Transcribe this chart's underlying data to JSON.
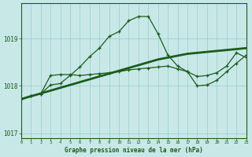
{
  "title": "Graphe pression niveau de la mer (hPa)",
  "bg_color": "#c8e8e8",
  "line_color": "#1a5c1a",
  "grid_color": "#99cccc",
  "xlim": [
    0,
    23
  ],
  "ylim": [
    1016.9,
    1019.75
  ],
  "yticks": [
    1017,
    1018,
    1019
  ],
  "xticks": [
    0,
    1,
    2,
    3,
    4,
    5,
    6,
    7,
    8,
    9,
    10,
    11,
    12,
    13,
    14,
    15,
    16,
    17,
    18,
    19,
    20,
    21,
    22,
    23
  ],
  "series_trend": [
    1017.72,
    1017.78,
    1017.84,
    1017.9,
    1017.96,
    1018.02,
    1018.08,
    1018.14,
    1018.2,
    1018.26,
    1018.32,
    1018.38,
    1018.44,
    1018.5,
    1018.56,
    1018.6,
    1018.64,
    1018.68,
    1018.7,
    1018.72,
    1018.74,
    1018.76,
    1018.78,
    1018.8
  ],
  "series_wavy": [
    1017.72,
    1017.79,
    1017.83,
    1018.02,
    1018.05,
    1018.22,
    1018.4,
    1018.62,
    1018.8,
    1019.05,
    1019.15,
    1019.38,
    1019.47,
    1019.47,
    1019.1,
    1018.65,
    1018.42,
    1018.3,
    1018.0,
    1018.02,
    1018.12,
    1018.3,
    1018.48,
    1018.65
  ],
  "series_flat": [
    1017.72,
    1017.79,
    1017.83,
    1018.22,
    1018.24,
    1018.24,
    1018.22,
    1018.24,
    1018.26,
    1018.28,
    1018.3,
    1018.34,
    1018.36,
    1018.38,
    1018.4,
    1018.42,
    1018.36,
    1018.3,
    1018.2,
    1018.22,
    1018.28,
    1018.42,
    1018.7,
    1018.6
  ]
}
